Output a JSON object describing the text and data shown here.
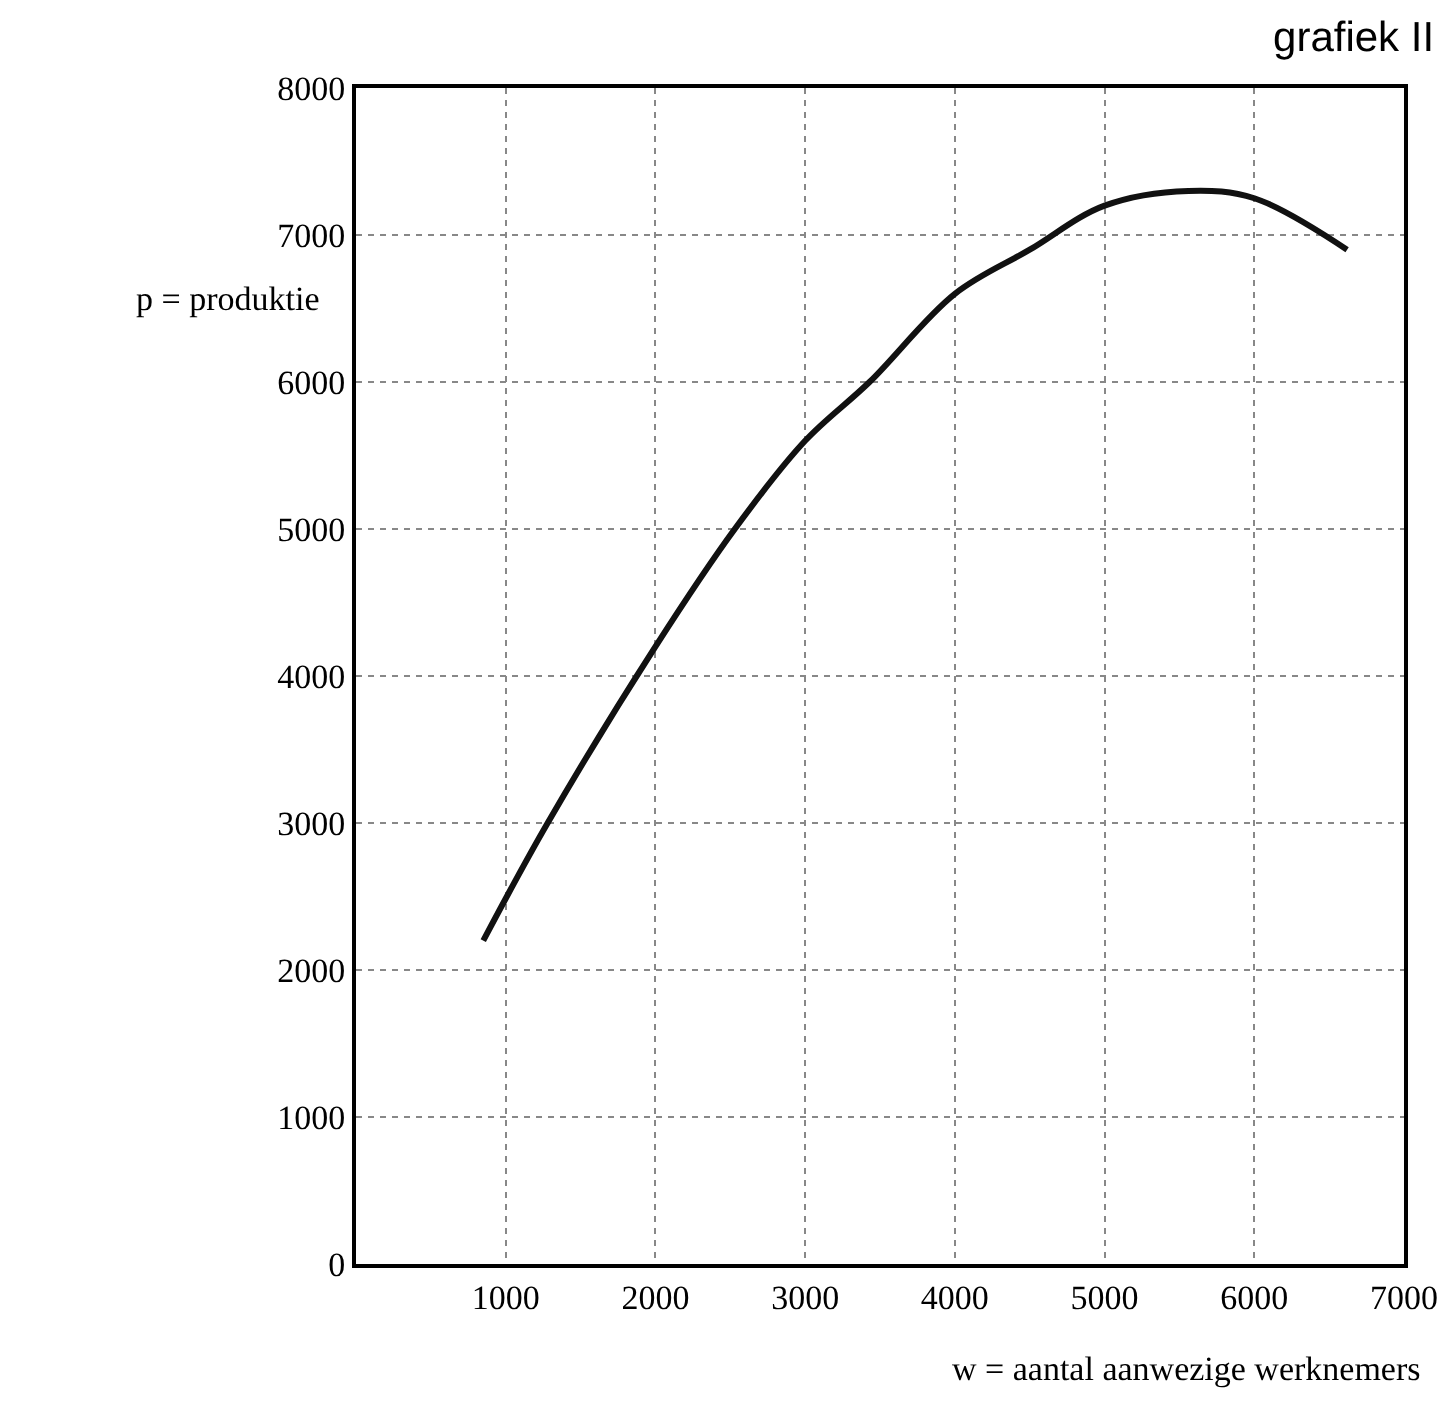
{
  "chart_data": {
    "type": "line",
    "title": "grafiek II",
    "xlabel": "w = aantal aanwezige werknemers",
    "ylabel": "p = produktie",
    "x": [
      850,
      1280,
      2000,
      2530,
      3000,
      3430,
      4000,
      4500,
      5000,
      5560,
      6000,
      6620
    ],
    "series": [
      {
        "color": "#111111",
        "values": [
          2200,
          3000,
          4200,
          5000,
          5600,
          6000,
          6600,
          6900,
          7200,
          7300,
          7250,
          6900
        ]
      }
    ],
    "xlim": [
      0,
      7000
    ],
    "xticks": [
      {
        "value": 0,
        "label": null
      },
      1000,
      2000,
      3000,
      4000,
      5000,
      6000,
      7000
    ],
    "ylim": [
      0,
      8000
    ],
    "yticks": [
      0,
      1000,
      2000,
      3000,
      4000,
      5000,
      6000,
      7000,
      8000
    ],
    "grid": true,
    "marker": "none",
    "line_style": "solid"
  }
}
